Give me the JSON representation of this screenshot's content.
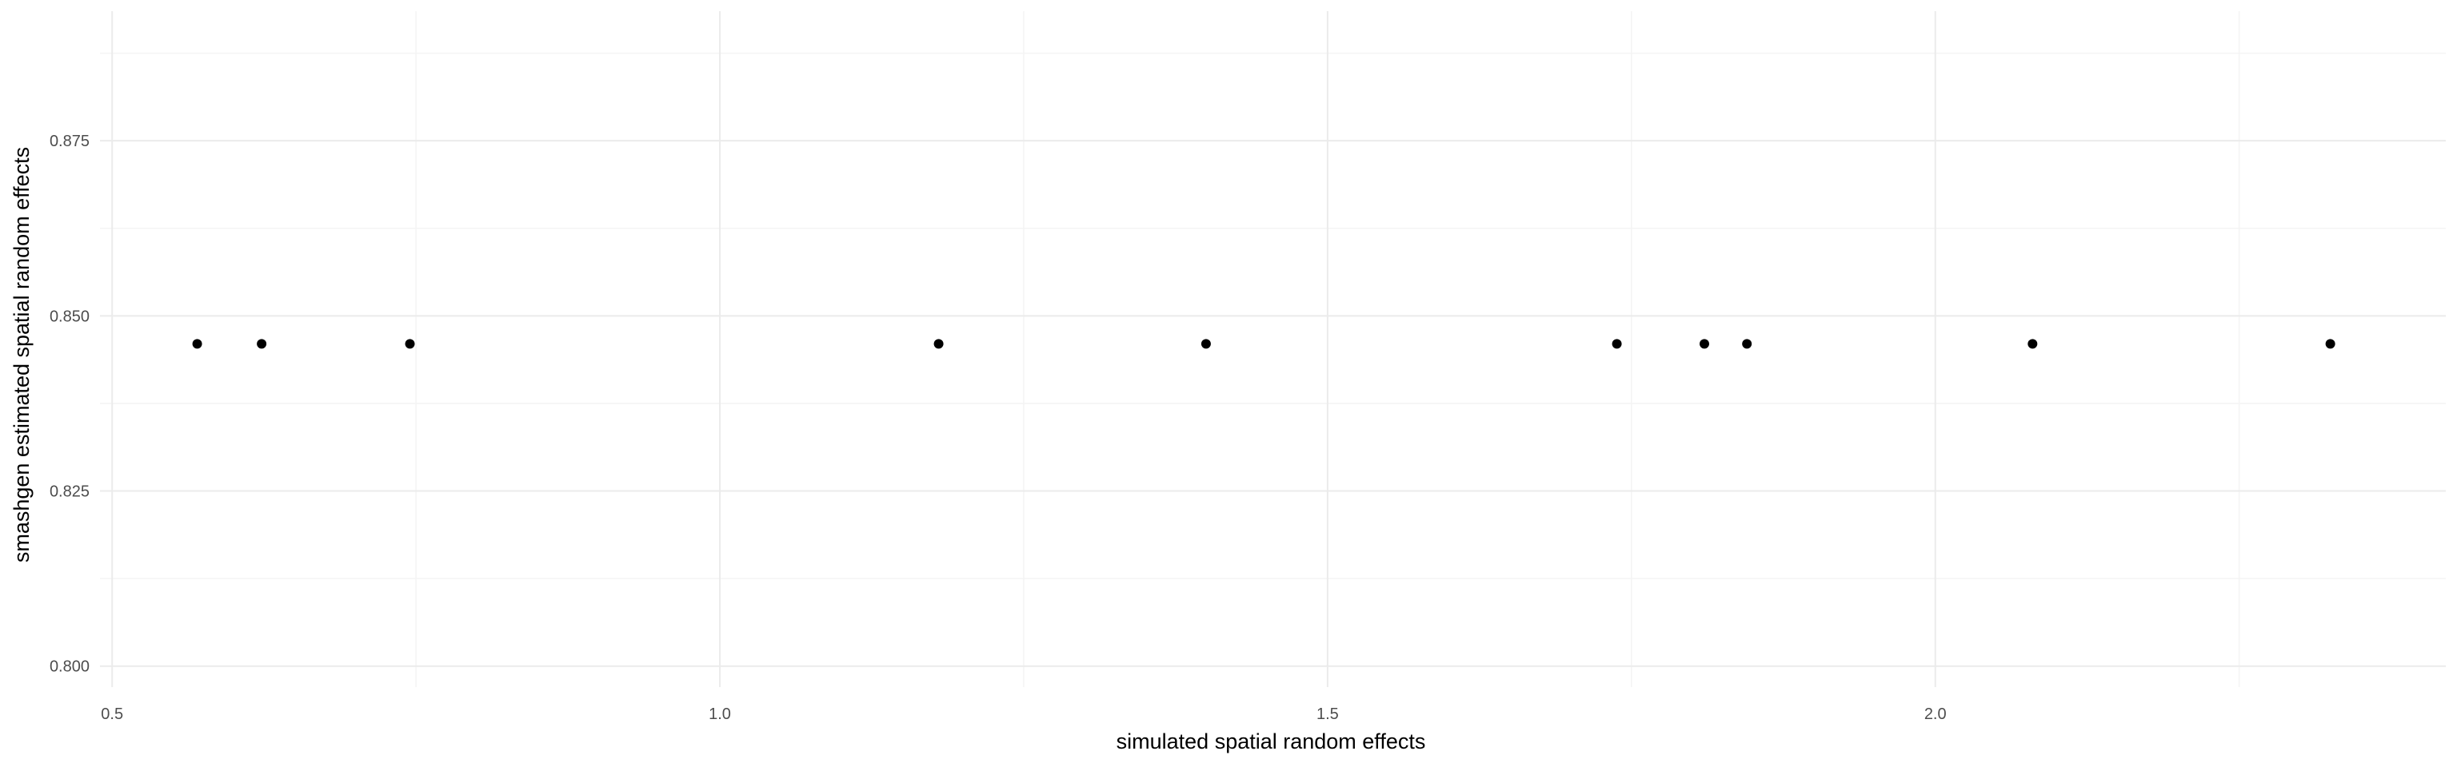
{
  "chart_data": {
    "type": "scatter",
    "xlabel": "simulated spatial random effects",
    "ylabel": "smashgen estimated spatial random effects",
    "xlim": [
      0.49,
      2.42
    ],
    "ylim": [
      0.797,
      0.8935
    ],
    "x_ticks": [
      0.5,
      1.0,
      1.5,
      2.0
    ],
    "x_tick_labels": [
      "0.5",
      "1.0",
      "1.5",
      "2.0"
    ],
    "x_minor": [
      0.75,
      1.25,
      1.75,
      2.25
    ],
    "y_ticks": [
      0.8,
      0.825,
      0.85,
      0.875
    ],
    "y_tick_labels": [
      "0.800",
      "0.825",
      "0.850",
      "0.875"
    ],
    "y_minor": [
      0.8125,
      0.8375,
      0.8625,
      0.8875
    ],
    "grid": true,
    "theme": "minimal",
    "points": [
      {
        "x": 0.57,
        "y": 0.846
      },
      {
        "x": 0.623,
        "y": 0.846
      },
      {
        "x": 0.745,
        "y": 0.846
      },
      {
        "x": 1.18,
        "y": 0.846
      },
      {
        "x": 1.4,
        "y": 0.846
      },
      {
        "x": 1.738,
        "y": 0.846
      },
      {
        "x": 1.81,
        "y": 0.846
      },
      {
        "x": 1.845,
        "y": 0.846
      },
      {
        "x": 2.08,
        "y": 0.846
      },
      {
        "x": 2.325,
        "y": 0.846
      }
    ]
  }
}
